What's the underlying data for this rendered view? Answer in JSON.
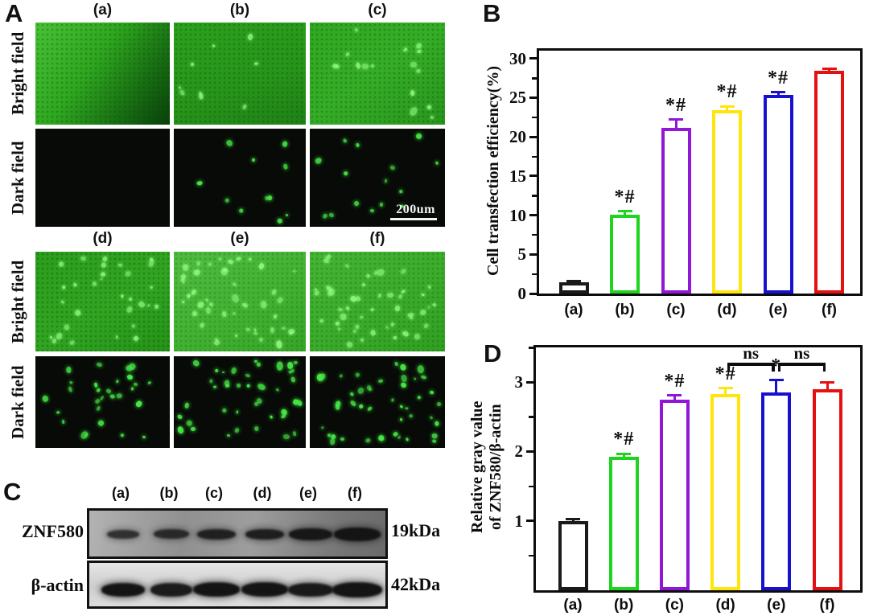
{
  "panels": {
    "a": {
      "letter": "A",
      "row_labels": [
        "Bright field",
        "Dark field"
      ],
      "groups": [
        {
          "columns": [
            "(a)",
            "(b)",
            "(c)"
          ]
        },
        {
          "columns": [
            "(d)",
            "(e)",
            "(f)"
          ]
        }
      ],
      "scale_bar_label": "200um",
      "cells": {
        "(a)": {
          "bright_dots": 0,
          "dark_dots": 0
        },
        "(b)": {
          "bright_dots": 9,
          "dark_dots": 11
        },
        "(c)": {
          "bright_dots": 16,
          "dark_dots": 15
        },
        "(d)": {
          "bright_dots": 30,
          "dark_dots": 28
        },
        "(e)": {
          "bright_dots": 44,
          "dark_dots": 40
        },
        "(f)": {
          "bright_dots": 46,
          "dark_dots": 44
        }
      }
    },
    "b": {
      "letter": "B"
    },
    "c": {
      "letter": "C",
      "lane_labels": [
        "(a)",
        "(b)",
        "(c)",
        "(d)",
        "(e)",
        "(f)"
      ],
      "bands": [
        {
          "protein": "ZNF580",
          "mw": "19kDa",
          "intensities": [
            0.8,
            0.84,
            0.9,
            0.92,
            0.97,
            1.0
          ],
          "widths": [
            40,
            44,
            48,
            48,
            54,
            58
          ],
          "heights": [
            11,
            12,
            13,
            13,
            15,
            17
          ]
        },
        {
          "protein": "β-actin",
          "mw": "42kDa",
          "intensities": [
            1.0,
            0.96,
            1.0,
            1.0,
            0.97,
            1.0
          ],
          "widths": [
            54,
            52,
            58,
            58,
            56,
            62
          ],
          "heights": [
            17,
            17,
            18,
            18,
            17,
            19
          ]
        }
      ]
    },
    "d": {
      "letter": "D"
    }
  },
  "chart_data": [
    {
      "type": "bar",
      "panel": "B",
      "categories": [
        "(a)",
        "(b)",
        "(c)",
        "(d)",
        "(e)",
        "(f)"
      ],
      "values": [
        1.4,
        10.1,
        21.1,
        23.4,
        25.4,
        28.4
      ],
      "errors": [
        0.15,
        0.4,
        1.1,
        0.5,
        0.3,
        0.25
      ],
      "annotations": [
        "",
        "*#",
        "*#",
        "*#",
        "*#",
        ""
      ],
      "bar_colors": [
        "#1a1a1a",
        "#1fd41f",
        "#9117d6",
        "#ffe50d",
        "#1711cf",
        "#e41111"
      ],
      "ylabel": "Cell transfection efficiency(%)",
      "xlabel": "",
      "yticks": [
        0,
        5,
        10,
        15,
        20,
        25,
        30
      ],
      "minor_tick_step": 2.5,
      "ylim": [
        0,
        31
      ],
      "grid": false,
      "legend": null
    },
    {
      "type": "bar",
      "panel": "D",
      "categories": [
        "(a)",
        "(b)",
        "(c)",
        "(d)",
        "(e)",
        "(f)"
      ],
      "values": [
        1.0,
        1.92,
        2.75,
        2.83,
        2.85,
        2.9
      ],
      "errors": [
        0.03,
        0.05,
        0.06,
        0.08,
        0.18,
        0.1
      ],
      "annotations": [
        "",
        "*#",
        "*#",
        "*#",
        "*",
        ""
      ],
      "bar_colors": [
        "#1a1a1a",
        "#1fd41f",
        "#9117d6",
        "#ffe50d",
        "#1711cf",
        "#e41111"
      ],
      "ylabel_lines": [
        "Relative gray value",
        "of ZNF580/β-actin"
      ],
      "xlabel": "",
      "yticks": [
        1,
        2,
        3
      ],
      "minor_tick_step": 0.5,
      "ylim": [
        0,
        3.5
      ],
      "grid": false,
      "legend": null,
      "ns_brackets": [
        {
          "from": "(d)",
          "to": "(e)",
          "label": "ns"
        },
        {
          "from": "(e)",
          "to": "(f)",
          "label": "ns"
        }
      ]
    }
  ]
}
